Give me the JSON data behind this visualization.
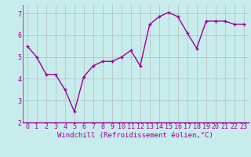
{
  "x": [
    0,
    1,
    2,
    3,
    4,
    5,
    6,
    7,
    8,
    9,
    10,
    11,
    12,
    13,
    14,
    15,
    16,
    17,
    18,
    19,
    20,
    21,
    22,
    23
  ],
  "y": [
    5.5,
    5.0,
    4.2,
    4.2,
    3.5,
    2.5,
    4.1,
    4.6,
    4.8,
    4.8,
    5.0,
    5.3,
    4.6,
    6.5,
    6.85,
    7.05,
    6.85,
    6.1,
    5.4,
    6.65,
    6.65,
    6.65,
    6.5,
    6.5
  ],
  "line_color": "#990099",
  "marker": "+",
  "bg_color": "#c8ecec",
  "grid_color": "#aaaaaa",
  "xlabel": "Windchill (Refroidissement éolien,°C)",
  "xlabel_color": "#990099",
  "tick_color": "#990099",
  "axis_color": "#990099",
  "ylim": [
    2,
    7.4
  ],
  "xlim": [
    -0.5,
    23.5
  ],
  "yticks": [
    2,
    3,
    4,
    5,
    6,
    7
  ],
  "xticks": [
    0,
    1,
    2,
    3,
    4,
    5,
    6,
    7,
    8,
    9,
    10,
    11,
    12,
    13,
    14,
    15,
    16,
    17,
    18,
    19,
    20,
    21,
    22,
    23
  ],
  "label_fontsize": 6.5,
  "tick_fontsize": 6,
  "linewidth": 1.0,
  "markersize": 3.5,
  "markeredgewidth": 1.0
}
